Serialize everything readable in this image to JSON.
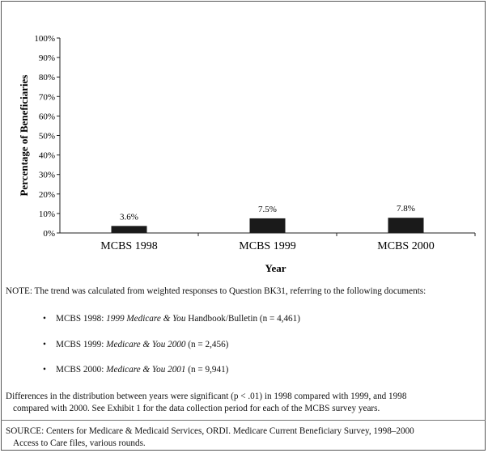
{
  "chart_data": {
    "type": "bar",
    "categories": [
      "MCBS 1998",
      "MCBS 1999",
      "MCBS 2000"
    ],
    "values": [
      3.6,
      7.5,
      7.8
    ],
    "data_labels": [
      "3.6%",
      "7.5%",
      "7.8%"
    ],
    "xlabel": "Year",
    "ylabel": "Percentage of Beneficiaries",
    "ylim": [
      0,
      100
    ],
    "yticks": [
      "0%",
      "10%",
      "20%",
      "30%",
      "40%",
      "50%",
      "60%",
      "70%",
      "80%",
      "90%",
      "100%"
    ],
    "bar_color": "#1a1a1a",
    "grid": false
  },
  "notes": {
    "note": "NOTE:  The trend was calculated from weighted responses to Question BK31, referring to the following documents:",
    "bullets": [
      {
        "prefix": "MCBS 1998:  ",
        "italic": "1999 Medicare & You",
        "suffix": "  Handbook/Bulletin (n = 4,461)"
      },
      {
        "prefix": "MCBS 1999:  ",
        "italic": "Medicare & You 2000",
        "suffix": " (n = 2,456)"
      },
      {
        "prefix": "MCBS 2000:  ",
        "italic": "Medicare & You 2001",
        "suffix": " (n = 9,941)"
      }
    ],
    "bullet_symbol": "•",
    "differences_1": "Differences in the distribution between years were significant (p < .01) in 1998 compared with 1999, and 1998",
    "differences_2": "compared with 2000.  See Exhibit 1 for the data collection period for each of the MCBS survey years.",
    "source_1": "SOURCE:  Centers for Medicare & Medicaid Services, ORDI.  Medicare Current Beneficiary Survey, 1998–2000",
    "source_2": "Access to Care files, various rounds."
  }
}
